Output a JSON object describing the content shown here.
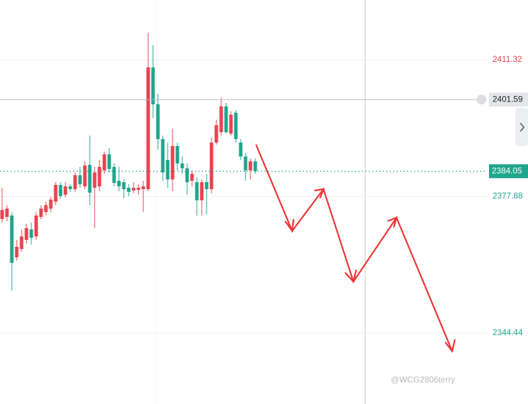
{
  "chart_data": {
    "type": "candlestick",
    "up_color": "#e8434f",
    "down_color": "#1fa58c",
    "open": [
      2372.35,
      2372.86,
      2373.2,
      2362.99,
      2365.03,
      2367.24,
      2369.79,
      2368.09,
      2372.86,
      2374.05,
      2374.9,
      2376.6,
      2380.69,
      2378.3,
      2380.35,
      2379.67,
      2383.07,
      2380.35,
      2385.62,
      2380.01,
      2380.35,
      2384.26,
      2388.18,
      2385.11,
      2381.71,
      2381.37,
      2380.01,
      2379.33,
      2379.5,
      2379.67,
      2379.67,
      2409.45,
      2400.43,
      2391.92,
      2386.81,
      2382.05,
      2390.22,
      2385.96,
      2384.77,
      2381.71,
      2381.37,
      2376.94,
      2381.37,
      2379.67,
      2391.07,
      2393.62,
      2399.92,
      2393.28,
      2398.39,
      2391.07,
      2387.66,
      2384.26,
      2386.47
    ],
    "high": [
      2380.01,
      2375.75,
      2374.05,
      2367.24,
      2369.79,
      2371.16,
      2371.5,
      2374.05,
      2375.75,
      2376.6,
      2377.79,
      2381.37,
      2381.37,
      2381.37,
      2380.86,
      2383.75,
      2385.11,
      2386.47,
      2392.77,
      2385.11,
      2386.81,
      2388.86,
      2389.71,
      2385.96,
      2385.11,
      2382.05,
      2380.86,
      2381.37,
      2380.86,
      2381.71,
      2417.96,
      2414.9,
      2402.98,
      2392.77,
      2391.07,
      2394.47,
      2391.07,
      2387.66,
      2385.96,
      2384.26,
      2382.56,
      2382.05,
      2383.41,
      2392.26,
      2396.69,
      2402.13,
      2400.77,
      2398.73,
      2399.07,
      2391.92,
      2388.52,
      2387.15,
      2387.15
    ],
    "low": [
      2371.5,
      2371.84,
      2354.82,
      2362.13,
      2364.35,
      2366.39,
      2366.05,
      2367.24,
      2372.35,
      2373.2,
      2374.05,
      2375.75,
      2377.28,
      2377.62,
      2378.98,
      2378.98,
      2380.01,
      2379.67,
      2375.75,
      2370.13,
      2379.15,
      2383.41,
      2383.75,
      2380.35,
      2379.15,
      2377.45,
      2377.96,
      2378.64,
      2378.3,
      2374.05,
      2379.15,
      2397.03,
      2389.37,
      2381.71,
      2380.01,
      2379.15,
      2384.26,
      2383.41,
      2378.3,
      2380.35,
      2373.2,
      2373.2,
      2373.54,
      2378.64,
      2390.56,
      2392.77,
      2393.28,
      2392.77,
      2391.07,
      2386.81,
      2381.71,
      2382.05,
      2383.41
    ],
    "close": [
      2374.56,
      2374.9,
      2361.62,
      2365.54,
      2368.09,
      2370.13,
      2367.75,
      2373.2,
      2374.9,
      2375.75,
      2377.11,
      2380.69,
      2377.96,
      2380.35,
      2379.67,
      2383.07,
      2380.86,
      2385.45,
      2378.81,
      2383.75,
      2385.11,
      2388.18,
      2384.6,
      2381.2,
      2380.35,
      2379.67,
      2378.98,
      2380.01,
      2380.01,
      2380.35,
      2409.45,
      2400.43,
      2391.92,
      2383.75,
      2382.05,
      2390.22,
      2385.96,
      2384.77,
      2381.37,
      2383.41,
      2376.94,
      2381.37,
      2379.67,
      2391.07,
      2395.32,
      2399.92,
      2393.62,
      2397.88,
      2391.92,
      2387.66,
      2384.26,
      2386.47,
      2384.05
    ],
    "ylim": [
      2327.08,
      2425.96
    ],
    "yticks": [
      2411.32,
      2377.88,
      2344.44
    ],
    "ytick_colors": [
      "#e8434f",
      "#1fa58c",
      "#1fa58c"
    ],
    "crosshair_price": 2401.59,
    "watermark": "@WCG2806terry"
  }
}
